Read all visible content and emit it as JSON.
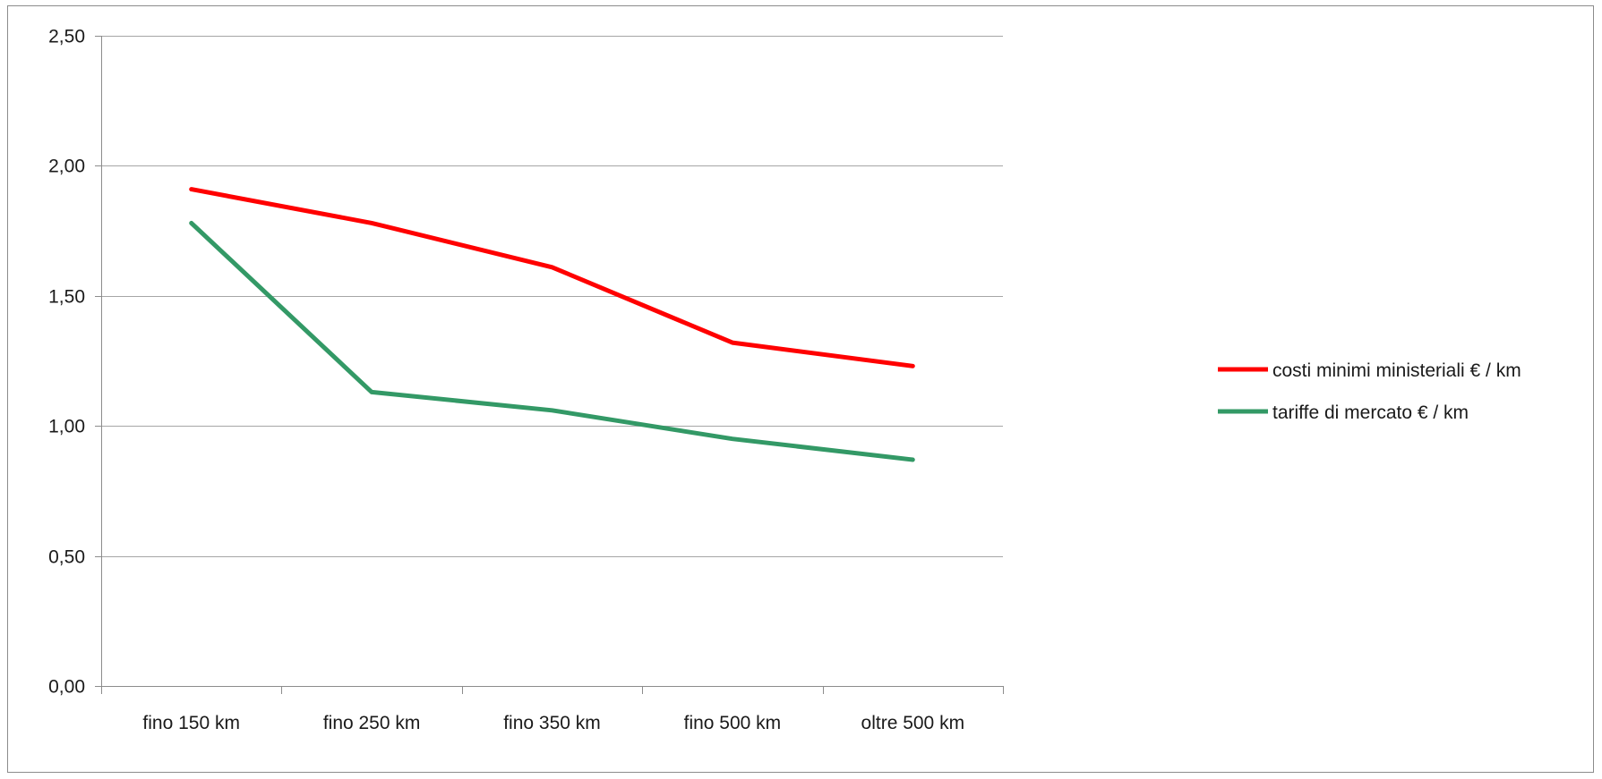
{
  "chart_data": {
    "type": "line",
    "title": "",
    "xlabel": "",
    "ylabel": "",
    "categories": [
      "fino 150 km",
      "fino 250 km",
      "fino 350 km",
      "fino 500 km",
      "oltre 500 km"
    ],
    "ylim": [
      0,
      2.5
    ],
    "yticks": [
      "0,00",
      "0,50",
      "1,00",
      "1,50",
      "2,00",
      "2,50"
    ],
    "ytick_values": [
      0,
      0.5,
      1.0,
      1.5,
      2.0,
      2.5
    ],
    "grid": true,
    "legend_position": "right",
    "series": [
      {
        "name": "costi minimi ministeriali € / km",
        "color": "#ff0000",
        "values": [
          1.91,
          1.78,
          1.61,
          1.32,
          1.23
        ]
      },
      {
        "name": "tariffe di mercato € / km",
        "color": "#339966",
        "values": [
          1.78,
          1.13,
          1.06,
          0.95,
          0.87
        ]
      }
    ]
  }
}
